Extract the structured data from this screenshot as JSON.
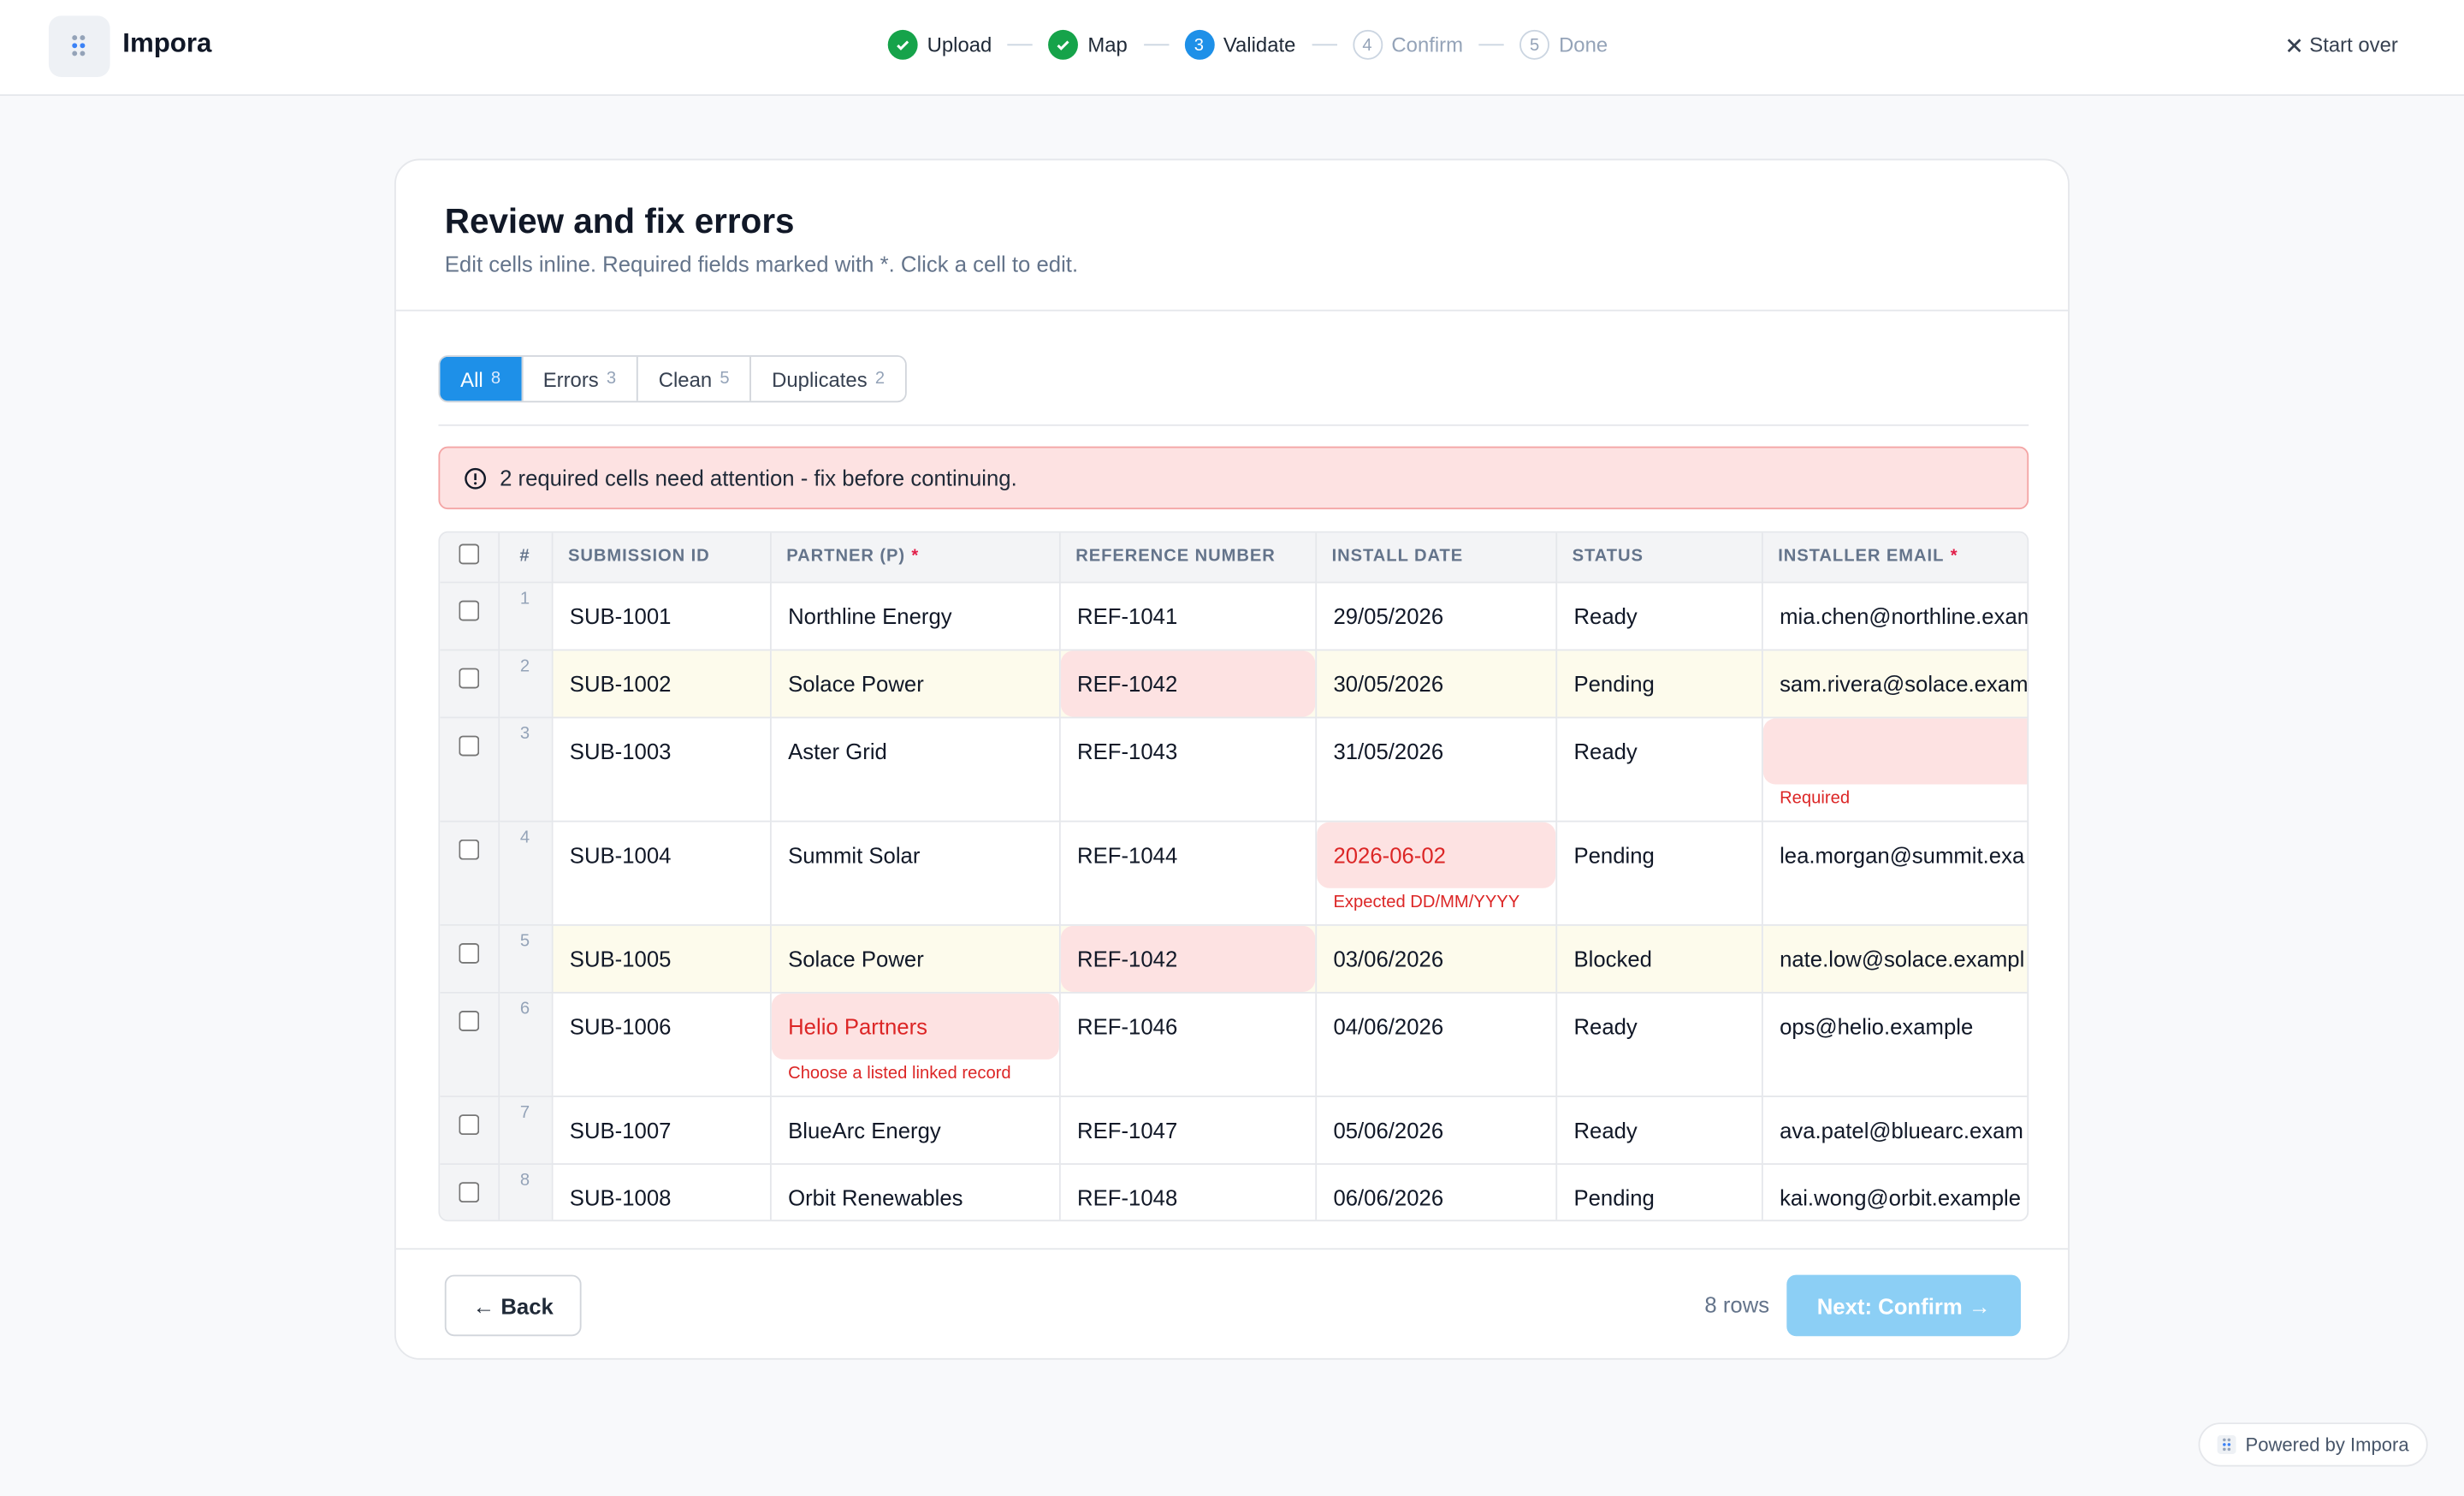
{
  "header": {
    "brand": "Impora",
    "steps": [
      {
        "label": "Upload",
        "state": "done"
      },
      {
        "label": "Map",
        "state": "done"
      },
      {
        "number": "3",
        "label": "Validate",
        "state": "current"
      },
      {
        "number": "4",
        "label": "Confirm",
        "state": "todo"
      },
      {
        "number": "5",
        "label": "Done",
        "state": "todo"
      }
    ],
    "start_over": "Start over"
  },
  "card": {
    "title": "Review and fix errors",
    "subtitle": "Edit cells inline. Required fields marked with *. Click a cell to edit.",
    "tabs": [
      {
        "label": "All",
        "count": 8,
        "active": true
      },
      {
        "label": "Errors",
        "count": 3
      },
      {
        "label": "Clean",
        "count": 5
      },
      {
        "label": "Duplicates",
        "count": 2
      }
    ],
    "alert": "2 required cells need attention - fix before continuing.",
    "table": {
      "required_mark": "*",
      "columns": [
        {
          "label": "#"
        },
        {
          "label": "SUBMISSION ID"
        },
        {
          "label": "PARTNER (P)",
          "required": true
        },
        {
          "label": "REFERENCE NUMBER"
        },
        {
          "label": "INSTALL DATE"
        },
        {
          "label": "STATUS"
        },
        {
          "label": "INSTALLER EMAIL",
          "required": true
        }
      ],
      "rows": [
        {
          "num": "1",
          "cells": [
            {
              "text": "SUB-1001"
            },
            {
              "text": "Northline Energy"
            },
            {
              "text": "REF-1041"
            },
            {
              "text": "29/05/2026"
            },
            {
              "text": "Ready"
            },
            {
              "text": "mia.chen@northline.exam"
            }
          ]
        },
        {
          "num": "2",
          "duplicate": true,
          "cells": [
            {
              "text": "SUB-1002"
            },
            {
              "text": "Solace Power"
            },
            {
              "text": "REF-1042",
              "error": true
            },
            {
              "text": "30/05/2026"
            },
            {
              "text": "Pending"
            },
            {
              "text": "sam.rivera@solace.exam"
            }
          ]
        },
        {
          "num": "3",
          "cells": [
            {
              "text": "SUB-1003"
            },
            {
              "text": "Aster Grid"
            },
            {
              "text": "REF-1043"
            },
            {
              "text": "31/05/2026"
            },
            {
              "text": "Ready"
            },
            {
              "error": true,
              "message": "Required"
            }
          ]
        },
        {
          "num": "4",
          "cells": [
            {
              "text": "SUB-1004"
            },
            {
              "text": "Summit Solar"
            },
            {
              "text": "REF-1044"
            },
            {
              "text": "2026-06-02",
              "error": true,
              "message": "Expected DD/MM/YYYY"
            },
            {
              "text": "Pending"
            },
            {
              "text": "lea.morgan@summit.exa"
            }
          ]
        },
        {
          "num": "5",
          "duplicate": true,
          "cells": [
            {
              "text": "SUB-1005"
            },
            {
              "text": "Solace Power"
            },
            {
              "text": "REF-1042",
              "error": true
            },
            {
              "text": "03/06/2026"
            },
            {
              "text": "Blocked"
            },
            {
              "text": "nate.low@solace.exampl"
            }
          ]
        },
        {
          "num": "6",
          "cells": [
            {
              "text": "SUB-1006"
            },
            {
              "text": "Helio Partners",
              "error": true,
              "message": "Choose a listed linked record"
            },
            {
              "text": "REF-1046"
            },
            {
              "text": "04/06/2026"
            },
            {
              "text": "Ready"
            },
            {
              "text": "ops@helio.example"
            }
          ]
        },
        {
          "num": "7",
          "cells": [
            {
              "text": "SUB-1007"
            },
            {
              "text": "BlueArc Energy"
            },
            {
              "text": "REF-1047"
            },
            {
              "text": "05/06/2026"
            },
            {
              "text": "Ready"
            },
            {
              "text": "ava.patel@bluearc.exam"
            }
          ]
        },
        {
          "num": "8",
          "cells": [
            {
              "text": "SUB-1008"
            },
            {
              "text": "Orbit Renewables"
            },
            {
              "text": "REF-1048"
            },
            {
              "text": "06/06/2026"
            },
            {
              "text": "Pending"
            },
            {
              "text": "kai.wong@orbit.example"
            }
          ]
        }
      ]
    },
    "footer": {
      "back": "← Back",
      "row_count": "8 rows",
      "next": "Next: Confirm →"
    }
  },
  "powered": "Powered by Impora"
}
